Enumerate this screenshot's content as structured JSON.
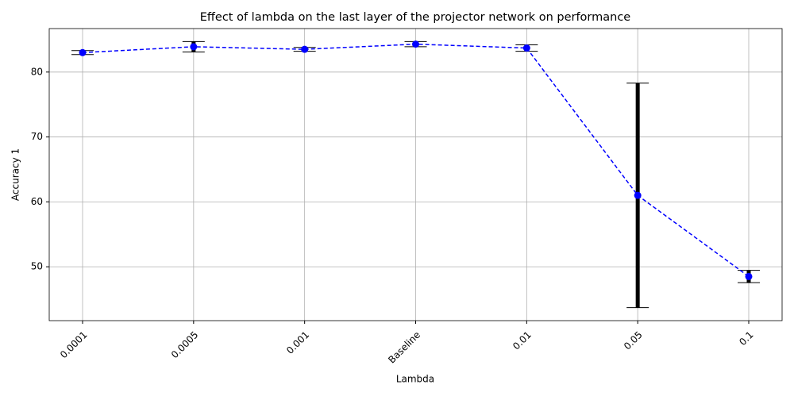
{
  "chart_data": {
    "type": "line",
    "title": "Effect of lambda on the last layer of the projector network on performance",
    "x_label": "Lambda",
    "y_label": "Accuracy 1",
    "categories": [
      "0.0001",
      "0.0005",
      "0.001",
      "Baseline",
      "0.01",
      "0.05",
      "0.1"
    ],
    "series": [
      {
        "color": "#0000ff",
        "ecolor": "#000000",
        "values": [
          83.0,
          83.9,
          83.5,
          84.3,
          83.7,
          61.0,
          48.5
        ],
        "errors": [
          0.3,
          0.8,
          0.3,
          0.4,
          0.5,
          17.3,
          0.95
        ]
      }
    ],
    "ylim": [
      41.7,
      86.7
    ],
    "yticks": [
      50,
      60,
      70,
      80
    ],
    "grid": true
  }
}
